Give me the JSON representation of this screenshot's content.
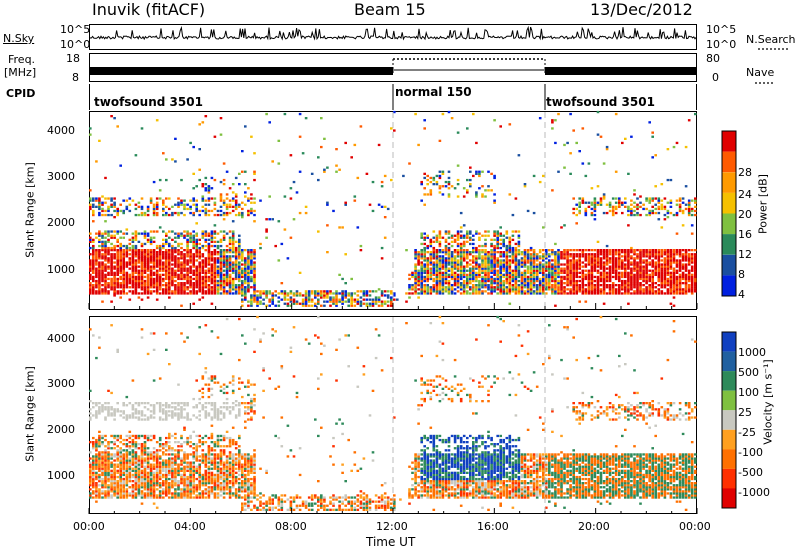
{
  "header": {
    "site": "Inuvik (fitACF)",
    "beam": "Beam 15",
    "date": "13/Dec/2012"
  },
  "labels": {
    "nsky": "N.Sky",
    "freq": "Freq.",
    "mhz": "[MHz]",
    "cpid": "CPID",
    "nsearch": "N.Search",
    "nave": "Nave"
  },
  "noise_panel": {
    "left_ticks": [
      "10^5",
      "10^0"
    ],
    "right_ticks": [
      "10^5",
      "10^0"
    ]
  },
  "freq_panel": {
    "left_ticks": [
      "18",
      "8"
    ],
    "right_ticks": [
      "80",
      "0"
    ]
  },
  "cpid_panel": {
    "segments": [
      {
        "label": "twofsound 3501",
        "start_hour": 0,
        "end_hour": 12
      },
      {
        "label": "normal 150",
        "start_hour": 12,
        "end_hour": 18
      },
      {
        "label": "twofsound 3501",
        "start_hour": 18,
        "end_hour": 24
      }
    ]
  },
  "chart_data": [
    {
      "type": "heatmap",
      "title": "Power",
      "ylabel": "Slant Range [km]",
      "xlabel": "",
      "y_ticks": [
        "1000",
        "2000",
        "3000",
        "4000"
      ],
      "ylim": [
        200,
        4500
      ],
      "xlim_hours": [
        0,
        24
      ],
      "colorbar": {
        "label": "Power [dB]",
        "ticks": [
          "28",
          "24",
          "20",
          "16",
          "12",
          "8",
          "4"
        ],
        "colors": [
          "#e00000",
          "#ff5a00",
          "#ff9a00",
          "#f5c000",
          "#7fc040",
          "#2a8a5a",
          "#1a4fa0",
          "#0020e0"
        ]
      }
    },
    {
      "type": "heatmap",
      "title": "Velocity",
      "ylabel": "Slant Range [km]",
      "xlabel": "Time UT",
      "x_ticks": [
        "00:00",
        "04:00",
        "08:00",
        "12:00",
        "16:00",
        "20:00",
        "00:00"
      ],
      "y_ticks": [
        "1000",
        "2000",
        "3000",
        "4000"
      ],
      "ylim": [
        200,
        4500
      ],
      "xlim_hours": [
        0,
        24
      ],
      "colorbar": {
        "label": "Velocity [m s⁻¹]",
        "ticks": [
          "1000",
          "500",
          "100",
          "25",
          "-25",
          "-100",
          "-500",
          "-1000"
        ],
        "colors": [
          "#1040c0",
          "#2060a0",
          "#2e8a5a",
          "#7fc040",
          "#c8c8c0",
          "#ffa020",
          "#ff7000",
          "#ff3000",
          "#e00000"
        ]
      }
    }
  ]
}
